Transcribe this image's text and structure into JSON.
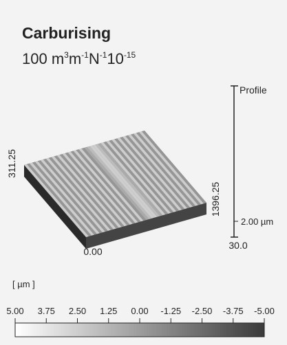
{
  "header": {
    "title": "Carburising",
    "unit_parts": [
      "100 m",
      "3",
      "m",
      "-1",
      "N",
      "-1",
      "10",
      "-15"
    ]
  },
  "surface": {
    "y_extent_label": "311.25",
    "x_extent_label": "1396.25",
    "origin_label": "0.00"
  },
  "profile_scale": {
    "title": "Profile",
    "scale_label": "2.00 µm",
    "bottom_label": "30.0"
  },
  "colorbar": {
    "unit": "[ µm ]",
    "ticks": [
      "5.00",
      "3.75",
      "2.50",
      "1.25",
      "0.00",
      "-1.25",
      "-2.50",
      "-3.75",
      "-5.00"
    ]
  }
}
